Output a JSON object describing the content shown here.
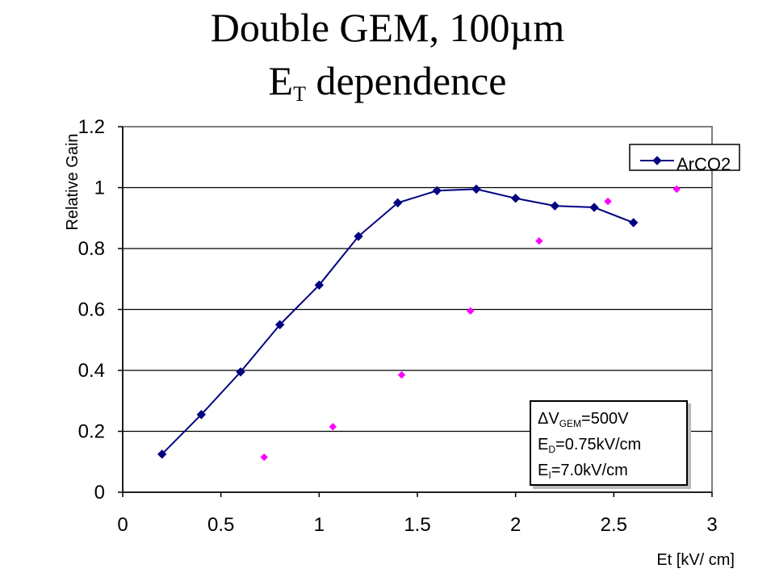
{
  "title": {
    "line1": "Double GEM, 100µm",
    "line2_main": "E",
    "line2_sub": "T",
    "line2_rest": " dependence"
  },
  "annotation": {
    "line1_main": "ΔV",
    "line1_sub": "GEM",
    "line1_rest": "=500V",
    "line2_main": "E",
    "line2_sub": "D",
    "line2_rest": "=0.75kV/cm",
    "line3_main": "E",
    "line3_sub": "I",
    "line3_rest": "=7.0kV/cm"
  },
  "colors": {
    "series": "#000080",
    "secondary_points": "#ff00ff",
    "gridline": "#000000"
  },
  "chart_data": {
    "type": "line",
    "title": "Double GEM, 100µm E_T dependence",
    "xlabel": "Et [kV/ cm]",
    "ylabel": "Relative Gain",
    "xlim": [
      0,
      3
    ],
    "ylim": [
      0,
      1.2
    ],
    "x_ticks": [
      "0",
      "0.5",
      "1",
      "1.5",
      "2",
      "2.5",
      "3"
    ],
    "y_ticks": [
      "0",
      "0.2",
      "0.4",
      "0.6",
      "0.8",
      "1",
      "1.2"
    ],
    "grid": "horizontal",
    "legend_position": "top-right",
    "series": [
      {
        "name": "ArCO2",
        "style": "line-with-diamond-markers",
        "x": [
          0.2,
          0.4,
          0.6,
          0.8,
          1.0,
          1.2,
          1.4,
          1.6,
          1.8,
          2.0,
          2.2,
          2.4,
          2.6
        ],
        "y": [
          0.125,
          0.255,
          0.395,
          0.55,
          0.68,
          0.84,
          0.95,
          0.99,
          0.995,
          0.965,
          0.94,
          0.935,
          0.885
        ]
      },
      {
        "style": "diamond-markers",
        "x": [
          0.72,
          1.07,
          1.42,
          1.77,
          2.12,
          2.47,
          2.82
        ],
        "y": [
          0.115,
          0.215,
          0.385,
          0.595,
          0.825,
          0.955,
          0.995
        ]
      }
    ]
  }
}
